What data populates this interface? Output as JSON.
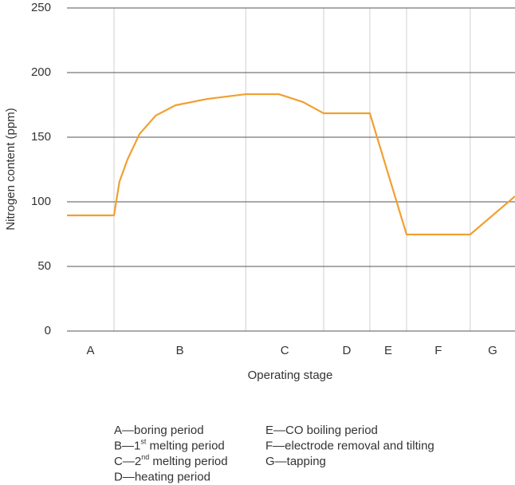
{
  "chart_data": {
    "type": "line",
    "ylabel": "Nitrogen content (ppm)",
    "xlabel": "Operating stage",
    "categories": [
      "A",
      "B",
      "C",
      "D",
      "E",
      "F",
      "G"
    ],
    "xlim": [
      0,
      100
    ],
    "xticks": [
      10.5,
      39.9,
      57.3,
      67.6,
      75.8,
      90
    ],
    "ylim": [
      0,
      250
    ],
    "yticks": [
      0,
      50,
      100,
      150,
      200,
      250
    ],
    "grid": true,
    "series": [
      {
        "color": "#f0a030",
        "x": [
          0,
          10.5,
          11.7,
          13.5,
          16.2,
          19.8,
          24.2,
          31.3,
          39.9,
          47.3,
          52.7,
          57.3,
          67.6,
          75.8,
          90,
          100
        ],
        "values": [
          89.5,
          89.5,
          115.4,
          132.7,
          152.5,
          166.7,
          174.7,
          179.6,
          183.3,
          183.3,
          177.2,
          168.5,
          168.5,
          74.7,
          74.7,
          104.3
        ]
      }
    ],
    "legend": [
      [
        {
          "text": "A—boring period"
        },
        {
          "text": "B—1",
          "sup": "st",
          "rest": " melting period"
        },
        {
          "text": "C—2",
          "sup": "nd",
          "rest": " melting period"
        },
        {
          "text": "D—heating period"
        }
      ],
      [
        {
          "text": "E—CO boiling period"
        },
        {
          "text": "F—electrode removal and tilting"
        },
        {
          "text": "G—tapping"
        }
      ]
    ]
  }
}
